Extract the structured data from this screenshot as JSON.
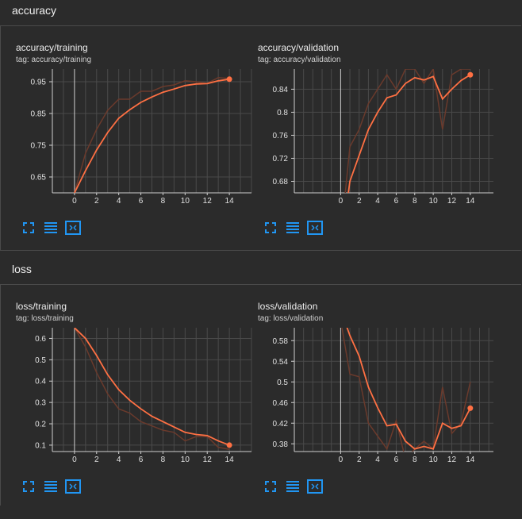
{
  "sections": [
    {
      "title": "accuracy"
    },
    {
      "title": "loss"
    }
  ],
  "cards": [
    {
      "title": "accuracy/training",
      "tag": "tag: accuracy/training"
    },
    {
      "title": "accuracy/validation",
      "tag": "tag: accuracy/validation"
    },
    {
      "title": "loss/training",
      "tag": "tag: loss/training"
    },
    {
      "title": "loss/validation",
      "tag": "tag: loss/validation"
    }
  ],
  "colors": {
    "smoothed": "#ff7043",
    "raw": "#6a3a2c",
    "grid": "#4a4a4a",
    "axis": "#cfcfcf",
    "tool": "#2196f3"
  },
  "icons": [
    "fit-screen-icon",
    "toggle-log-icon",
    "fit-domain-icon"
  ],
  "chart_data": [
    {
      "type": "line",
      "xlim": [
        -2,
        16
      ],
      "ylim": [
        0.6,
        0.99
      ],
      "xticks": [
        0,
        2,
        4,
        6,
        8,
        10,
        12,
        14
      ],
      "yticks": [
        0.65,
        0.75,
        0.85,
        0.95
      ],
      "ytick_labels": [
        "0.65",
        "0.75",
        "0.85",
        "0.95"
      ],
      "series": [
        {
          "role": "raw",
          "x": [
            0,
            1,
            2,
            3,
            4,
            5,
            6,
            7,
            8,
            9,
            10,
            11,
            12,
            13,
            14
          ],
          "y": [
            0.6,
            0.725,
            0.8,
            0.86,
            0.895,
            0.895,
            0.92,
            0.92,
            0.935,
            0.94,
            0.953,
            0.95,
            0.945,
            0.963,
            0.96
          ]
        },
        {
          "role": "smoothed",
          "x": [
            0,
            1,
            2,
            3,
            4,
            5,
            6,
            7,
            8,
            9,
            10,
            11,
            12,
            13,
            14
          ],
          "y": [
            0.6,
            0.67,
            0.735,
            0.79,
            0.835,
            0.862,
            0.885,
            0.902,
            0.917,
            0.927,
            0.938,
            0.943,
            0.944,
            0.953,
            0.958
          ]
        }
      ]
    },
    {
      "type": "line",
      "xlim": [
        -5,
        16.5
      ],
      "ylim": [
        0.66,
        0.875
      ],
      "xticks": [
        0,
        2,
        4,
        6,
        8,
        10,
        12,
        14
      ],
      "yticks": [
        0.68,
        0.72,
        0.76,
        0.8,
        0.84
      ],
      "ytick_labels": [
        "0.68",
        "0.72",
        "0.76",
        "0.8",
        "0.84"
      ],
      "series": [
        {
          "role": "raw",
          "x": [
            0,
            1,
            2,
            3,
            4,
            5,
            6,
            7,
            8,
            9,
            10,
            11,
            12,
            13,
            14
          ],
          "y": [
            0.58,
            0.74,
            0.77,
            0.815,
            0.84,
            0.865,
            0.84,
            0.875,
            0.875,
            0.85,
            0.875,
            0.77,
            0.865,
            0.875,
            0.875
          ]
        },
        {
          "role": "smoothed",
          "x": [
            0,
            1,
            2,
            3,
            4,
            5,
            6,
            7,
            8,
            9,
            10,
            11,
            12,
            13,
            14
          ],
          "y": [
            0.56,
            0.68,
            0.725,
            0.77,
            0.8,
            0.825,
            0.83,
            0.85,
            0.86,
            0.856,
            0.862,
            0.823,
            0.84,
            0.855,
            0.865
          ]
        }
      ]
    },
    {
      "type": "line",
      "xlim": [
        -2,
        16
      ],
      "ylim": [
        0.07,
        0.65
      ],
      "xticks": [
        0,
        2,
        4,
        6,
        8,
        10,
        12,
        14
      ],
      "yticks": [
        0.1,
        0.2,
        0.3,
        0.4,
        0.5,
        0.6
      ],
      "ytick_labels": [
        "0.1",
        "0.2",
        "0.3",
        "0.4",
        "0.5",
        "0.6"
      ],
      "series": [
        {
          "role": "raw",
          "x": [
            0,
            1,
            2,
            3,
            4,
            5,
            6,
            7,
            8,
            9,
            10,
            11,
            12,
            13,
            14
          ],
          "y": [
            0.65,
            0.56,
            0.44,
            0.34,
            0.27,
            0.25,
            0.21,
            0.19,
            0.17,
            0.16,
            0.12,
            0.14,
            0.14,
            0.09,
            0.08
          ]
        },
        {
          "role": "smoothed",
          "x": [
            0,
            1,
            2,
            3,
            4,
            5,
            6,
            7,
            8,
            9,
            10,
            11,
            12,
            13,
            14
          ],
          "y": [
            0.65,
            0.6,
            0.52,
            0.43,
            0.36,
            0.31,
            0.27,
            0.235,
            0.21,
            0.185,
            0.16,
            0.15,
            0.145,
            0.12,
            0.1
          ]
        }
      ]
    },
    {
      "type": "line",
      "xlim": [
        -5,
        16.5
      ],
      "ylim": [
        0.365,
        0.605
      ],
      "xticks": [
        0,
        2,
        4,
        6,
        8,
        10,
        12,
        14
      ],
      "yticks": [
        0.38,
        0.42,
        0.46,
        0.5,
        0.54,
        0.58
      ],
      "ytick_labels": [
        "0.38",
        "0.42",
        "0.46",
        "0.5",
        "0.54",
        "0.58"
      ],
      "series": [
        {
          "role": "raw",
          "x": [
            0,
            1,
            2,
            3,
            4,
            5,
            6,
            7,
            8,
            9,
            10,
            11,
            12,
            13,
            14
          ],
          "y": [
            0.62,
            0.515,
            0.51,
            0.42,
            0.395,
            0.37,
            0.425,
            0.35,
            0.37,
            0.385,
            0.37,
            0.49,
            0.4,
            0.42,
            0.5
          ]
        },
        {
          "role": "smoothed",
          "x": [
            0,
            1,
            2,
            3,
            4,
            5,
            6,
            7,
            8,
            9,
            10,
            11,
            12,
            13,
            14
          ],
          "y": [
            0.64,
            0.59,
            0.55,
            0.49,
            0.45,
            0.415,
            0.418,
            0.385,
            0.37,
            0.375,
            0.37,
            0.42,
            0.41,
            0.415,
            0.449
          ]
        }
      ]
    }
  ]
}
